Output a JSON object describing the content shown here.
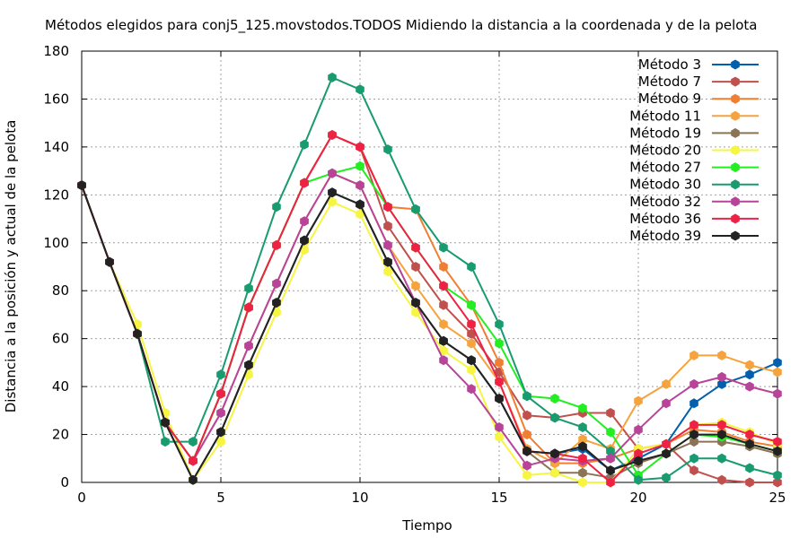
{
  "chart_data": {
    "type": "line",
    "title": "Métodos elegidos para conj5_125.movstodos.TODOS Midiendo la distancia a la coordenada y de la pelota",
    "xlabel": "Tiempo",
    "ylabel": "Distancia a la posición y actual de la pelota",
    "xlim": [
      0,
      25
    ],
    "ylim": [
      0,
      180
    ],
    "xticks": [
      0,
      5,
      10,
      15,
      20,
      25
    ],
    "yticks": [
      0,
      20,
      40,
      60,
      80,
      100,
      120,
      140,
      160,
      180
    ],
    "grid": true,
    "legend_position": "top-right",
    "x": [
      0,
      1,
      2,
      3,
      4,
      5,
      6,
      7,
      8,
      9,
      10,
      11,
      12,
      13,
      14,
      15,
      16,
      17,
      18,
      19,
      20,
      21,
      22,
      23,
      24,
      25
    ],
    "series": [
      {
        "name": "Método 3",
        "color": "#0060ad",
        "values": [
          124,
          92,
          62,
          25,
          1,
          21,
          49,
          75,
          101,
          121,
          116,
          92,
          75,
          59,
          51,
          35,
          13,
          12,
          14,
          5,
          10,
          16,
          33,
          41,
          45,
          50
        ]
      },
      {
        "name": "Método 7",
        "color": "#c0504d",
        "values": [
          124,
          92,
          62,
          25,
          9,
          37,
          73,
          99,
          125,
          145,
          140,
          107,
          90,
          74,
          62,
          46,
          28,
          27,
          29,
          29,
          14,
          16,
          5,
          1,
          0,
          0
        ]
      },
      {
        "name": "Método 9",
        "color": "#f07f33",
        "values": [
          124,
          92,
          62,
          25,
          9,
          37,
          73,
          99,
          125,
          145,
          140,
          115,
          114,
          90,
          74,
          50,
          20,
          8,
          8,
          10,
          14,
          16,
          22,
          21,
          17,
          15
        ]
      },
      {
        "name": "Método 11",
        "color": "#f5a33e",
        "values": [
          124,
          92,
          62,
          25,
          9,
          29,
          57,
          83,
          109,
          129,
          124,
          99,
          82,
          66,
          58,
          42,
          14,
          8,
          18,
          14,
          34,
          41,
          53,
          53,
          49,
          46
        ]
      },
      {
        "name": "Método 19",
        "color": "#8b7355",
        "values": [
          124,
          92,
          62,
          25,
          1,
          21,
          49,
          75,
          101,
          121,
          116,
          92,
          75,
          59,
          51,
          35,
          13,
          4,
          4,
          2,
          8,
          12,
          17,
          17,
          15,
          12
        ]
      },
      {
        "name": "Método 20",
        "color": "#f5f542",
        "values": [
          124,
          92,
          66,
          29,
          1,
          17,
          45,
          71,
          97,
          117,
          112,
          88,
          71,
          55,
          47,
          19,
          3,
          4,
          0,
          0,
          14,
          16,
          24,
          25,
          21,
          16
        ]
      },
      {
        "name": "Método 27",
        "color": "#22ee22",
        "values": [
          124,
          92,
          62,
          25,
          9,
          37,
          73,
          99,
          125,
          129,
          132,
          115,
          98,
          82,
          74,
          58,
          36,
          35,
          31,
          21,
          3,
          12,
          20,
          19,
          16,
          13
        ]
      },
      {
        "name": "Método 30",
        "color": "#189b6e",
        "values": [
          124,
          92,
          62,
          17,
          17,
          45,
          81,
          115,
          141,
          169,
          164,
          139,
          114,
          98,
          90,
          66,
          36,
          27,
          23,
          13,
          1,
          2,
          10,
          10,
          6,
          3
        ]
      },
      {
        "name": "Método 32",
        "color": "#b8449a",
        "values": [
          124,
          92,
          62,
          25,
          9,
          29,
          57,
          83,
          109,
          129,
          124,
          99,
          75,
          51,
          39,
          23,
          7,
          10,
          9,
          10,
          22,
          33,
          41,
          44,
          40,
          37
        ]
      },
      {
        "name": "Método 36",
        "color": "#ee2244",
        "values": [
          124,
          92,
          62,
          25,
          9,
          37,
          73,
          99,
          125,
          145,
          140,
          115,
          98,
          82,
          66,
          42,
          13,
          12,
          10,
          0,
          12,
          16,
          24,
          24,
          20,
          17
        ]
      },
      {
        "name": "Método 39",
        "color": "#222222",
        "values": [
          124,
          92,
          62,
          25,
          1,
          21,
          49,
          75,
          101,
          121,
          116,
          92,
          75,
          59,
          51,
          35,
          13,
          12,
          15,
          5,
          9,
          12,
          20,
          20,
          16,
          13
        ]
      }
    ]
  }
}
